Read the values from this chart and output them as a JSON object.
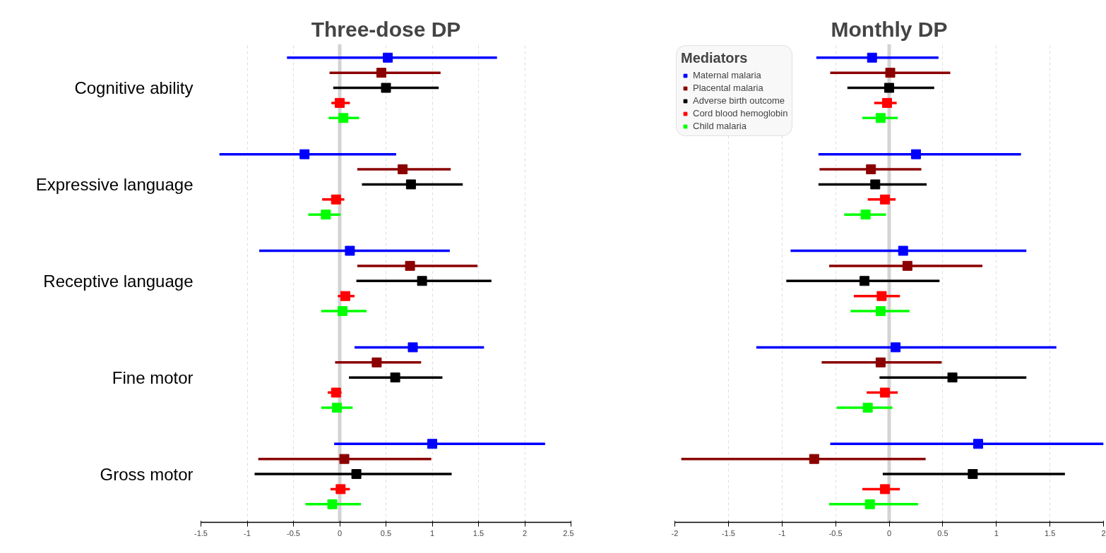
{
  "chart_data": [
    {
      "type": "scatter",
      "orientation": "horizontal",
      "title": "Three-dose DP",
      "categories": [
        "Cognitive ability",
        "Expressive language",
        "Receptive language",
        "Fine motor",
        "Gross motor"
      ],
      "xlim": [
        -1.5,
        2.5
      ],
      "xticks": [
        -1.5,
        -1,
        -0.5,
        0,
        0.5,
        1,
        1.5,
        2,
        2.5
      ],
      "grid": "x",
      "marker": "square",
      "ref_lines": [
        {
          "axis": "x",
          "value": 0,
          "color": "#d3d3d3"
        }
      ],
      "series": [
        {
          "color": "#0000ff",
          "values": [
            0.52,
            -0.38,
            0.11,
            0.79,
            1.0
          ],
          "errors": [
            [
              -0.57,
              1.7
            ],
            [
              -1.3,
              0.61
            ],
            [
              -0.87,
              1.19
            ],
            [
              0.16,
              1.56
            ],
            [
              -0.06,
              2.22
            ]
          ]
        },
        {
          "color": "#8b0000",
          "values": [
            0.45,
            0.68,
            0.76,
            0.4,
            0.05
          ],
          "errors": [
            [
              -0.11,
              1.09
            ],
            [
              0.19,
              1.2
            ],
            [
              0.19,
              1.49
            ],
            [
              -0.05,
              0.88
            ],
            [
              -0.88,
              0.99
            ]
          ]
        },
        {
          "color": "#000000",
          "values": [
            0.5,
            0.77,
            0.89,
            0.6,
            0.18
          ],
          "errors": [
            [
              -0.07,
              1.07
            ],
            [
              0.24,
              1.33
            ],
            [
              0.18,
              1.64
            ],
            [
              0.1,
              1.11
            ],
            [
              -0.92,
              1.21
            ]
          ]
        },
        {
          "color": "#ff0000",
          "values": [
            0.0,
            -0.04,
            0.06,
            -0.04,
            0.01
          ],
          "errors": [
            [
              -0.09,
              0.11
            ],
            [
              -0.19,
              0.05
            ],
            [
              -0.02,
              0.16
            ],
            [
              -0.13,
              0.02
            ],
            [
              -0.1,
              0.11
            ]
          ]
        },
        {
          "color": "#00ff00",
          "values": [
            0.04,
            -0.15,
            0.03,
            -0.03,
            -0.08
          ],
          "errors": [
            [
              -0.12,
              0.21
            ],
            [
              -0.34,
              0.01
            ],
            [
              -0.2,
              0.29
            ],
            [
              -0.2,
              0.14
            ],
            [
              -0.37,
              0.23
            ]
          ]
        }
      ]
    },
    {
      "type": "scatter",
      "orientation": "horizontal",
      "title": "Monthly DP",
      "categories": [
        null,
        null,
        null,
        null,
        null
      ],
      "xlim": [
        -2,
        2
      ],
      "xticks": [
        -2,
        -1.5,
        -1,
        -0.5,
        0,
        0.5,
        1,
        1.5,
        2
      ],
      "grid": "x",
      "marker": "square",
      "legend": "top left",
      "legend_title": "Mediators",
      "ref_lines": [
        {
          "axis": "x",
          "value": 0,
          "color": "#d3d3d3"
        }
      ],
      "series": [
        {
          "name": "Maternal malaria",
          "color": "#0000ff",
          "values": [
            -0.16,
            0.25,
            0.13,
            0.06,
            0.83
          ],
          "errors": [
            [
              -0.68,
              0.46
            ],
            [
              -0.66,
              1.23
            ],
            [
              -0.92,
              1.28
            ],
            [
              -1.24,
              1.56
            ],
            [
              -0.55,
              2
            ]
          ]
        },
        {
          "name": "Placental malaria",
          "color": "#8b0000",
          "values": [
            0.01,
            -0.17,
            0.17,
            -0.08,
            -0.7
          ],
          "errors": [
            [
              -0.55,
              0.57
            ],
            [
              -0.65,
              0.3
            ],
            [
              -0.56,
              0.87
            ],
            [
              -0.63,
              0.49
            ],
            [
              -1.94,
              0.34
            ]
          ]
        },
        {
          "name": "Adverse birth outcome",
          "color": "#000000",
          "values": [
            0.0,
            -0.13,
            -0.23,
            0.59,
            0.78
          ],
          "errors": [
            [
              -0.39,
              0.42
            ],
            [
              -0.66,
              0.35
            ],
            [
              -0.96,
              0.47
            ],
            [
              -0.09,
              1.28
            ],
            [
              -0.06,
              1.64
            ]
          ]
        },
        {
          "name": "Cord blood hemoglobin",
          "color": "#ff0000",
          "values": [
            -0.02,
            -0.04,
            -0.07,
            -0.04,
            -0.04
          ],
          "errors": [
            [
              -0.14,
              0.07
            ],
            [
              -0.2,
              0.06
            ],
            [
              -0.33,
              0.1
            ],
            [
              -0.21,
              0.08
            ],
            [
              -0.25,
              0.1
            ]
          ]
        },
        {
          "name": "Child malaria",
          "color": "#00ff00",
          "values": [
            -0.08,
            -0.22,
            -0.08,
            -0.2,
            -0.18
          ],
          "errors": [
            [
              -0.25,
              0.08
            ],
            [
              -0.42,
              -0.03
            ],
            [
              -0.36,
              0.19
            ],
            [
              -0.49,
              0.03
            ],
            [
              -0.56,
              0.27
            ]
          ]
        }
      ]
    }
  ]
}
